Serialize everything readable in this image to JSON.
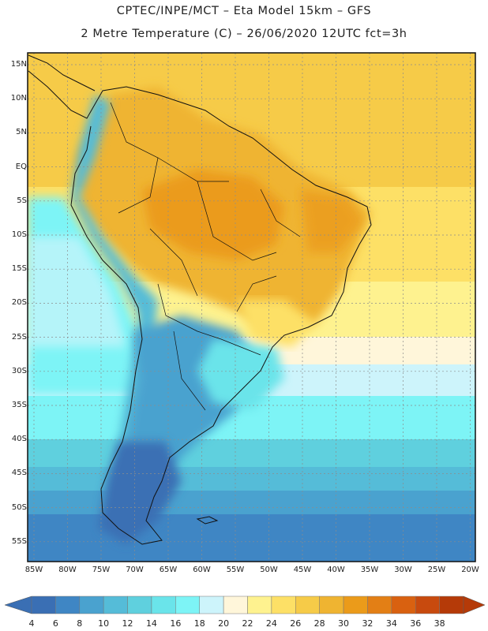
{
  "header": {
    "line1": "CPTEC/INPE/MCT  –   Eta Model 15km  –  GFS",
    "line2": "2 Metre Temperature (C)  –  26/06/2020 12UTC fct=3h"
  },
  "map": {
    "lat_labels": [
      "15N",
      "10N",
      "5N",
      "EQ",
      "5S",
      "10S",
      "15S",
      "20S",
      "25S",
      "30S",
      "35S",
      "40S",
      "45S",
      "50S",
      "55S"
    ],
    "lon_labels": [
      "85W",
      "80W",
      "75W",
      "70W",
      "65W",
      "60W",
      "55W",
      "50W",
      "45W",
      "40W",
      "35W",
      "30W",
      "25W",
      "20W"
    ]
  },
  "colorbar": {
    "labels": [
      "4",
      "6",
      "8",
      "10",
      "12",
      "14",
      "16",
      "18",
      "20",
      "22",
      "24",
      "26",
      "28",
      "30",
      "32",
      "34",
      "36",
      "38"
    ],
    "colors": [
      "#3a6fb4",
      "#3f86c4",
      "#4aa2cf",
      "#55bcd8",
      "#5fd0de",
      "#6ae4ea",
      "#7df4f6",
      "#cdf4fb",
      "#fff6da",
      "#fef28f",
      "#fde066",
      "#f6cb48",
      "#efb431",
      "#eb9b1a",
      "#e37f15",
      "#d96110",
      "#c84a0e",
      "#b53a08"
    ]
  }
}
